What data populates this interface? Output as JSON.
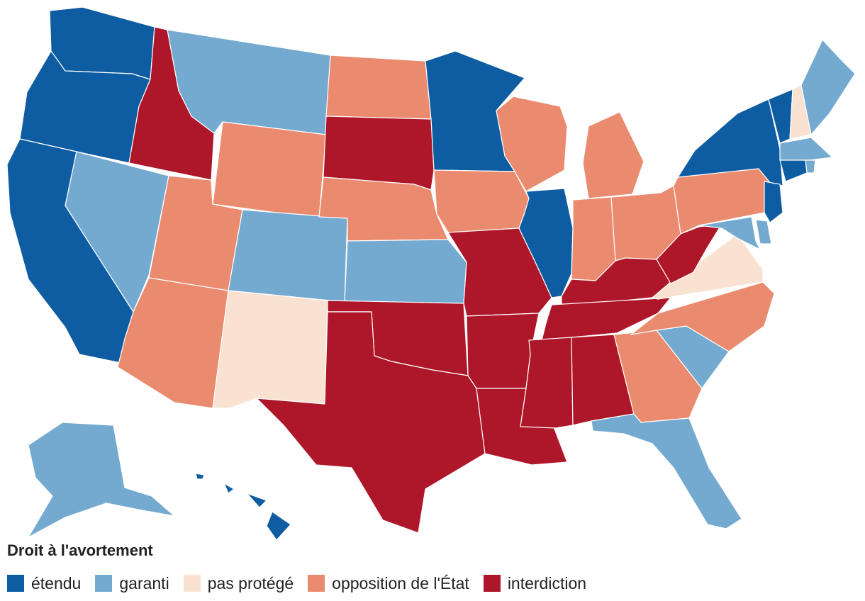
{
  "legend": {
    "title": "Droit à l'avortement",
    "items": [
      {
        "label": "étendu",
        "color": "#0e5ca1"
      },
      {
        "label": "garanti",
        "color": "#74a9d0"
      },
      {
        "label": "pas protégé",
        "color": "#f9e2d2"
      },
      {
        "label": "opposition de l'État",
        "color": "#ea8b6f"
      },
      {
        "label": "interdiction",
        "color": "#ae1729"
      }
    ]
  },
  "categories": {
    "expanded": "#0e5ca1",
    "protected": "#74a9d0",
    "not_protected": "#f9e2d2",
    "hostile": "#ea8b6f",
    "banned": "#ae1729"
  },
  "states": [
    {
      "code": "WA",
      "category": "expanded"
    },
    {
      "code": "OR",
      "category": "expanded"
    },
    {
      "code": "CA",
      "category": "expanded"
    },
    {
      "code": "ID",
      "category": "banned"
    },
    {
      "code": "NV",
      "category": "protected"
    },
    {
      "code": "MT",
      "category": "protected"
    },
    {
      "code": "WY",
      "category": "hostile"
    },
    {
      "code": "UT",
      "category": "hostile"
    },
    {
      "code": "AZ",
      "category": "hostile"
    },
    {
      "code": "CO",
      "category": "protected"
    },
    {
      "code": "NM",
      "category": "not_protected"
    },
    {
      "code": "ND",
      "category": "hostile"
    },
    {
      "code": "SD",
      "category": "banned"
    },
    {
      "code": "NE",
      "category": "hostile"
    },
    {
      "code": "KS",
      "category": "protected"
    },
    {
      "code": "OK",
      "category": "banned"
    },
    {
      "code": "TX",
      "category": "banned"
    },
    {
      "code": "MN",
      "category": "expanded"
    },
    {
      "code": "IA",
      "category": "hostile"
    },
    {
      "code": "MO",
      "category": "banned"
    },
    {
      "code": "AR",
      "category": "banned"
    },
    {
      "code": "LA",
      "category": "banned"
    },
    {
      "code": "WI",
      "category": "hostile"
    },
    {
      "code": "IL",
      "category": "expanded"
    },
    {
      "code": "MI",
      "category": "hostile"
    },
    {
      "code": "IN",
      "category": "hostile"
    },
    {
      "code": "OH",
      "category": "hostile"
    },
    {
      "code": "KY",
      "category": "banned"
    },
    {
      "code": "TN",
      "category": "banned"
    },
    {
      "code": "MS",
      "category": "banned"
    },
    {
      "code": "AL",
      "category": "banned"
    },
    {
      "code": "GA",
      "category": "hostile"
    },
    {
      "code": "FL",
      "category": "protected"
    },
    {
      "code": "SC",
      "category": "protected"
    },
    {
      "code": "NC",
      "category": "hostile"
    },
    {
      "code": "VA",
      "category": "not_protected"
    },
    {
      "code": "WV",
      "category": "banned"
    },
    {
      "code": "PA",
      "category": "hostile"
    },
    {
      "code": "NY",
      "category": "expanded"
    },
    {
      "code": "VT",
      "category": "expanded"
    },
    {
      "code": "NH",
      "category": "not_protected"
    },
    {
      "code": "ME",
      "category": "protected"
    },
    {
      "code": "MA",
      "category": "protected"
    },
    {
      "code": "RI",
      "category": "protected"
    },
    {
      "code": "CT",
      "category": "expanded"
    },
    {
      "code": "NJ",
      "category": "expanded"
    },
    {
      "code": "DE",
      "category": "protected"
    },
    {
      "code": "MD",
      "category": "protected"
    },
    {
      "code": "AK",
      "category": "protected"
    },
    {
      "code": "HI",
      "category": "expanded"
    }
  ]
}
